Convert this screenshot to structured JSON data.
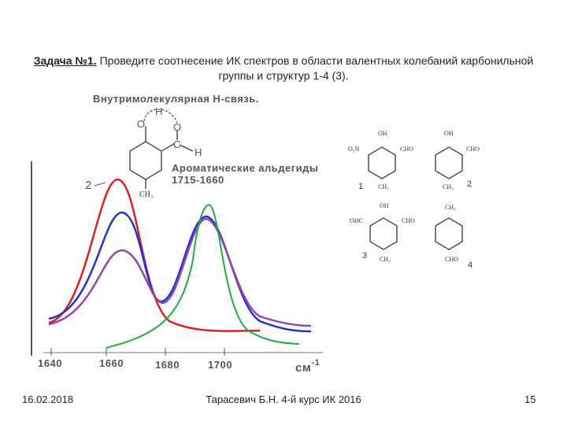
{
  "header": {
    "task": "Задача №1.",
    "text": "Проведите соотнесение ИК спектров в области валентных колебаний карбонильной группы и структур 1-4 (3)."
  },
  "figure": {
    "hbond": "Внутримолекулярная Н-связь.",
    "aldehydes": "Ароматические альдегиды",
    "range": "1715-1660",
    "curve_label": "2",
    "axis_ticks": [
      "1640",
      "1660",
      "1680",
      "1700"
    ],
    "axis_unit": "см",
    "axis_unit_power": "-1",
    "main_structure": {
      "h": "H",
      "o1": "O",
      "o2": "O",
      "c": "C",
      "h2": "H",
      "ch3": "CH₃"
    },
    "structures": [
      {
        "number": "1",
        "groups": [
          "OH",
          "O₂N",
          "CHO",
          "CH₃"
        ]
      },
      {
        "number": "2",
        "groups": [
          "OH",
          "CHO",
          "CH₃"
        ]
      },
      {
        "number": "3",
        "groups": [
          "OH",
          "OHC",
          "CHO",
          "CH₃"
        ]
      },
      {
        "number": "4",
        "groups": [
          "CH₃",
          "CHO"
        ]
      }
    ]
  },
  "footer": {
    "date": "16.02.2018",
    "author": "Тарасевич Б.Н. 4-й курс ИК 2016",
    "page": "15"
  }
}
